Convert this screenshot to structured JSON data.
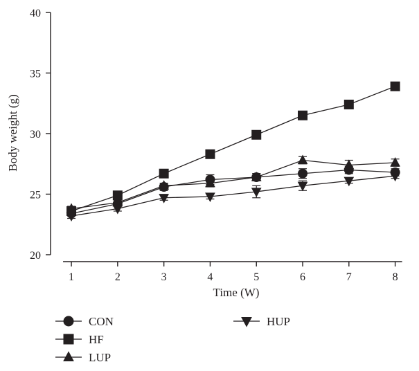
{
  "chart_data": {
    "type": "line",
    "title": "",
    "xlabel": "Time (W)",
    "ylabel": "Body weight (g)",
    "x": [
      1,
      2,
      3,
      4,
      5,
      6,
      7,
      8
    ],
    "x_tick_labels": [
      "1",
      "2",
      "3",
      "4",
      "5",
      "6",
      "7",
      "8"
    ],
    "xlim": [
      0.55,
      8.5
    ],
    "ylim": [
      20,
      40
    ],
    "y_ticks": [
      20,
      25,
      30,
      35,
      40
    ],
    "y_tick_labels": [
      "20",
      "25",
      "30",
      "35",
      "40"
    ],
    "grid": false,
    "legend_position": "bottom",
    "series": [
      {
        "name": "CON",
        "marker": "circle",
        "values": [
          23.4,
          24.2,
          25.6,
          26.2,
          26.4,
          26.7,
          27.0,
          26.8
        ],
        "errors": [
          0.2,
          0.2,
          0.3,
          0.4,
          0.3,
          0.4,
          0.3,
          0.3
        ]
      },
      {
        "name": "HF",
        "marker": "square",
        "values": [
          23.6,
          24.9,
          26.7,
          28.3,
          29.9,
          31.5,
          32.4,
          33.9
        ],
        "errors": [
          0.2,
          0.2,
          0.3,
          0.3,
          0.3,
          0.3,
          0.3,
          0.3
        ]
      },
      {
        "name": "LUP",
        "marker": "triangle-up",
        "values": [
          23.8,
          24.3,
          25.7,
          25.9,
          26.4,
          27.8,
          27.4,
          27.6
        ],
        "errors": [
          0.2,
          0.2,
          0.2,
          0.3,
          0.3,
          0.3,
          0.4,
          0.3
        ]
      },
      {
        "name": "HUP",
        "marker": "triangle-down",
        "values": [
          23.2,
          23.8,
          24.7,
          24.8,
          25.2,
          25.7,
          26.1,
          26.5
        ],
        "errors": [
          0.2,
          0.2,
          0.2,
          0.2,
          0.5,
          0.4,
          0.2,
          0.2
        ]
      }
    ],
    "colors": {
      "line": "#231f20",
      "marker": "#231f20",
      "background": "#ffffff"
    }
  }
}
